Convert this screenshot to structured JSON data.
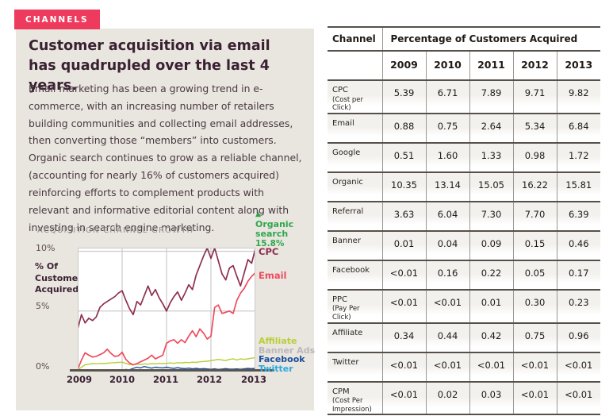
{
  "badge": {
    "label": "CHANNELS"
  },
  "article": {
    "heading": "Customer acquisition via email has quadrupled over the last 4 years.",
    "body": "Email marketing has been a growing trend in e-commerce, with an increasing number of retailers building communities and collecting email addresses, then converting those “members” into customers. Organic search continues to grow as a reliable channel, (accounting for nearly 16% of customers acquired) reinforcing efforts to complement products with relevant and informative editorial content along with investing in search engine marketing.",
    "body_highlight": "16% of customers acquired"
  },
  "chart_data": {
    "type": "line",
    "title": "ACQUISITION CHANNEL GROWTH",
    "ylabel": "% Of Customers Acquired",
    "yticks": [
      {
        "label": "10%",
        "value": 10
      },
      {
        "label": "5%",
        "value": 5
      },
      {
        "label": "0%",
        "value": 0
      }
    ],
    "ylim": [
      0,
      10.3
    ],
    "xticks": [
      "2009",
      "2010",
      "2011",
      "2012",
      "2013"
    ],
    "x_start_year": 2009,
    "samples_per_year": 12,
    "grid": true,
    "legend_position": "right",
    "annotation": {
      "icon": "▲",
      "label": "Organic search",
      "value_label": "15.8%",
      "value": 15.8,
      "color": "#2fa84c",
      "off_chart": true
    },
    "series": [
      {
        "name": "CPC",
        "color": "#8e2f50",
        "values": [
          3.5,
          4.7,
          4.0,
          4.4,
          4.2,
          4.5,
          5.3,
          5.6,
          5.8,
          6.0,
          6.2,
          6.5,
          6.7,
          5.9,
          5.2,
          4.7,
          5.8,
          5.5,
          6.3,
          7.1,
          6.3,
          6.8,
          6.1,
          5.6,
          5.0,
          5.7,
          6.2,
          6.6,
          5.9,
          6.5,
          7.2,
          6.8,
          8.0,
          8.8,
          9.6,
          10.3,
          9.4,
          10.3,
          9.2,
          8.1,
          7.6,
          8.6,
          8.8,
          7.9,
          7.1,
          8.2,
          9.3,
          9.0,
          10.2
        ]
      },
      {
        "name": "Email",
        "color": "#ef4b5e",
        "values": [
          0.1,
          0.9,
          1.5,
          1.3,
          1.15,
          1.2,
          1.35,
          1.5,
          1.8,
          1.45,
          1.2,
          1.25,
          1.55,
          0.95,
          0.65,
          0.5,
          0.6,
          0.75,
          0.9,
          1.05,
          1.3,
          1.0,
          1.15,
          1.3,
          2.3,
          2.5,
          2.6,
          2.3,
          2.6,
          2.35,
          2.9,
          3.35,
          2.85,
          3.5,
          3.15,
          2.65,
          2.9,
          5.3,
          5.5,
          4.8,
          4.9,
          5.0,
          4.8,
          5.9,
          6.5,
          6.9,
          7.5,
          7.9,
          8.2
        ]
      },
      {
        "name": "Affiliate",
        "color": "#b7cf36",
        "values": [
          0.05,
          0.3,
          0.5,
          0.55,
          0.6,
          0.58,
          0.62,
          0.6,
          0.63,
          0.65,
          0.68,
          0.7,
          0.72,
          0.62,
          0.52,
          0.5,
          0.55,
          0.52,
          0.58,
          0.55,
          0.6,
          0.58,
          0.62,
          0.6,
          0.62,
          0.65,
          0.62,
          0.68,
          0.65,
          0.7,
          0.68,
          0.72,
          0.7,
          0.75,
          0.78,
          0.8,
          0.85,
          0.9,
          0.95,
          0.9,
          0.85,
          0.95,
          1.0,
          0.9,
          1.0,
          0.95,
          1.0,
          1.05,
          1.1
        ]
      },
      {
        "name": "Banner Ads",
        "color": "#b9b9b9",
        "values": [
          0.02,
          0.03,
          0.02,
          0.03,
          0.02,
          0.03,
          0.04,
          0.03,
          0.04,
          0.04,
          0.05,
          0.04,
          0.05,
          0.04,
          0.05,
          0.06,
          0.05,
          0.06,
          0.07,
          0.06,
          0.07,
          0.08,
          0.07,
          0.08,
          0.08,
          0.09,
          0.08,
          0.09,
          0.1,
          0.09,
          0.1,
          0.11,
          0.1,
          0.11,
          0.12,
          0.12,
          0.12,
          0.13,
          0.14,
          0.13,
          0.15,
          0.14,
          0.16,
          0.15,
          0.17,
          0.18,
          0.17,
          0.19,
          0.22
        ]
      },
      {
        "name": "Facebook",
        "color": "#1c4f9c",
        "values": [
          0.02,
          0.02,
          0.03,
          0.02,
          0.03,
          0.02,
          0.03,
          0.03,
          0.02,
          0.03,
          0.04,
          0.05,
          0.06,
          0.1,
          0.08,
          0.2,
          0.3,
          0.24,
          0.35,
          0.28,
          0.22,
          0.3,
          0.26,
          0.24,
          0.3,
          0.24,
          0.2,
          0.26,
          0.2,
          0.18,
          0.22,
          0.16,
          0.2,
          0.15,
          0.18,
          0.15,
          0.12,
          0.16,
          0.1,
          0.14,
          0.18,
          0.14,
          0.12,
          0.16,
          0.1,
          0.15,
          0.2,
          0.16,
          0.2
        ]
      },
      {
        "name": "Twitter",
        "color": "#2aa9e0",
        "values": [
          0.04,
          0.05,
          0.04,
          0.05,
          0.04,
          0.05,
          0.04,
          0.05,
          0.04,
          0.05,
          0.04,
          0.05,
          0.05,
          0.04,
          0.05,
          0.06,
          0.05,
          0.04,
          0.06,
          0.05,
          0.04,
          0.05,
          0.06,
          0.05,
          0.05,
          0.06,
          0.05,
          0.04,
          0.06,
          0.05,
          0.06,
          0.05,
          0.06,
          0.05,
          0.06,
          0.05,
          0.06,
          0.05,
          0.07,
          0.06,
          0.08,
          0.06,
          0.07,
          0.09,
          0.12,
          0.08,
          0.14,
          0.1,
          0.15
        ]
      }
    ]
  },
  "table": {
    "col1_header": "Channel",
    "group_header": "Percentage of Customers Acquired",
    "year_headers": [
      "2009",
      "2010",
      "2011",
      "2012",
      "2013"
    ],
    "rows": [
      {
        "channel": "CPC",
        "sub": "(Cost per Click)",
        "values": [
          "5.39",
          "6.71",
          "7.89",
          "9.71",
          "9.82"
        ]
      },
      {
        "channel": "Email",
        "sub": "",
        "values": [
          "0.88",
          "0.75",
          "2.64",
          "5.34",
          "6.84"
        ]
      },
      {
        "channel": "Google",
        "sub": "",
        "values": [
          "0.51",
          "1.60",
          "1.33",
          "0.98",
          "1.72"
        ]
      },
      {
        "channel": "Organic",
        "sub": "",
        "values": [
          "10.35",
          "13.14",
          "15.05",
          "16.22",
          "15.81"
        ]
      },
      {
        "channel": "Referral",
        "sub": "",
        "values": [
          "3.63",
          "6.04",
          "7.30",
          "7.70",
          "6.39"
        ]
      },
      {
        "channel": "Banner",
        "sub": "",
        "values": [
          "0.01",
          "0.04",
          "0.09",
          "0.15",
          "0.46"
        ]
      },
      {
        "channel": "Facebook",
        "sub": "",
        "values": [
          "<0.01",
          "0.16",
          "0.22",
          "0.05",
          "0.17"
        ]
      },
      {
        "channel": "PPC",
        "sub": "(Pay Per Click)",
        "values": [
          "<0.01",
          "<0.01",
          "0.01",
          "0.30",
          "0.23"
        ]
      },
      {
        "channel": "Affiliate",
        "sub": "",
        "values": [
          "0.34",
          "0.44",
          "0.42",
          "0.75",
          "0.96"
        ]
      },
      {
        "channel": "Twitter",
        "sub": "",
        "values": [
          "<0.01",
          "<0.01",
          "<0.01",
          "<0.01",
          "<0.01"
        ]
      },
      {
        "channel": "CPM",
        "sub": "(Cost Per Impression)",
        "values": [
          "<0.01",
          "0.02",
          "0.03",
          "<0.01",
          "<0.01"
        ]
      }
    ]
  },
  "colors": {
    "badge_bg": "#ee3a5d",
    "panel_bg": "#e9e5df",
    "heading_text": "#3a2132",
    "chart_grid": "#cccccc",
    "axis_line": "#5b544e",
    "table_border_dark": "#57504a",
    "table_border_light": "#9b9691"
  }
}
